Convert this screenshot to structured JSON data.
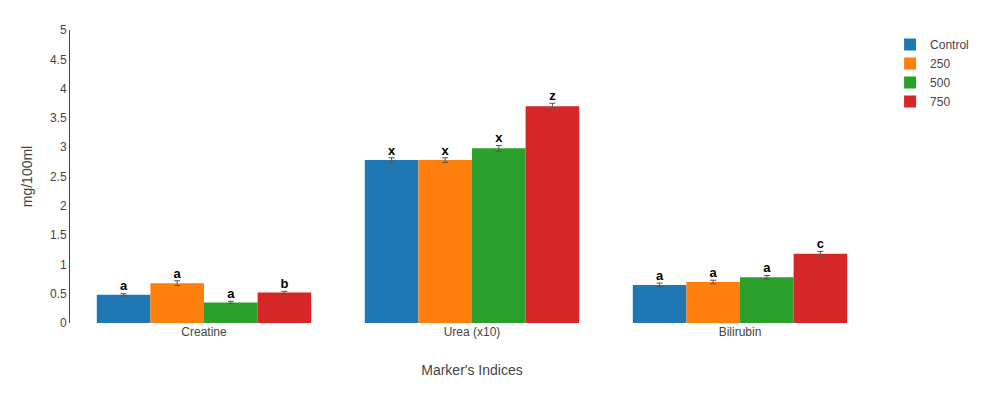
{
  "chart_data": {
    "type": "bar",
    "xlabel": "Marker's Indices",
    "ylabel": "mg/100ml",
    "categories": [
      "Creatine",
      "Urea (x10)",
      "Bilirubin"
    ],
    "series": [
      {
        "name": "Control",
        "values": [
          0.48,
          2.78,
          0.65
        ],
        "errors": [
          0.02,
          0.04,
          0.03
        ],
        "annotations": [
          "a",
          "x",
          "a"
        ]
      },
      {
        "name": "250",
        "values": [
          0.68,
          2.78,
          0.7
        ],
        "errors": [
          0.04,
          0.04,
          0.03
        ],
        "annotations": [
          "a",
          "x",
          "a"
        ]
      },
      {
        "name": "500",
        "values": [
          0.35,
          2.98,
          0.78
        ],
        "errors": [
          0.02,
          0.05,
          0.03
        ],
        "annotations": [
          "a",
          "x",
          "a"
        ]
      },
      {
        "name": "750",
        "values": [
          0.52,
          3.7,
          1.18
        ],
        "errors": [
          0.02,
          0.05,
          0.04
        ],
        "annotations": [
          "b",
          "z",
          "c"
        ]
      }
    ],
    "ylim": [
      0,
      5
    ],
    "yticks": [
      0,
      0.5,
      1,
      1.5,
      2,
      2.5,
      3,
      3.5,
      4,
      4.5,
      5
    ],
    "grid": false,
    "legend": "right"
  }
}
